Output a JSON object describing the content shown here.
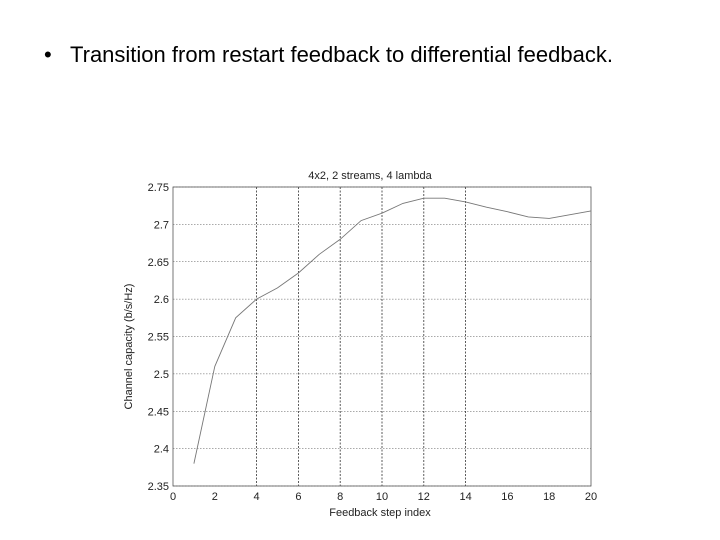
{
  "slide": {
    "bullet_text": "Transition from restart feedback to differential feedback."
  },
  "chart_data": {
    "type": "line",
    "title": "4x2, 2 streams, 4 lambda",
    "xlabel": "Feedback step index",
    "ylabel": "Channel capacity (b/s/Hz)",
    "xlim": [
      0,
      20
    ],
    "ylim": [
      2.35,
      2.75
    ],
    "x_ticks": [
      0,
      2,
      4,
      6,
      8,
      10,
      12,
      14,
      16,
      18,
      20
    ],
    "y_ticks": [
      2.35,
      2.4,
      2.45,
      2.5,
      2.55,
      2.6,
      2.65,
      2.7,
      2.75
    ],
    "x_tick_labels": [
      "0",
      "2",
      "4",
      "6",
      "8",
      "10",
      "12",
      "14",
      "16",
      "18",
      "20"
    ],
    "y_tick_labels": [
      "2.35",
      "2.4",
      "2.45",
      "2.5",
      "2.55",
      "2.6",
      "2.65",
      "2.7",
      "2.75"
    ],
    "grid": true,
    "vertical_markers": [
      4,
      6,
      8,
      10,
      12,
      14
    ],
    "series": [
      {
        "x": [
          1,
          2,
          3,
          4,
          5,
          6,
          7,
          8,
          9,
          10,
          11,
          12,
          13,
          14,
          15,
          16,
          17,
          18,
          19,
          20
        ],
        "y": [
          2.38,
          2.51,
          2.575,
          2.6,
          2.615,
          2.635,
          2.66,
          2.68,
          2.705,
          2.715,
          2.728,
          2.735,
          2.735,
          2.73,
          2.723,
          2.717,
          2.71,
          2.708,
          2.713,
          2.718
        ],
        "color": "#777777"
      }
    ]
  }
}
